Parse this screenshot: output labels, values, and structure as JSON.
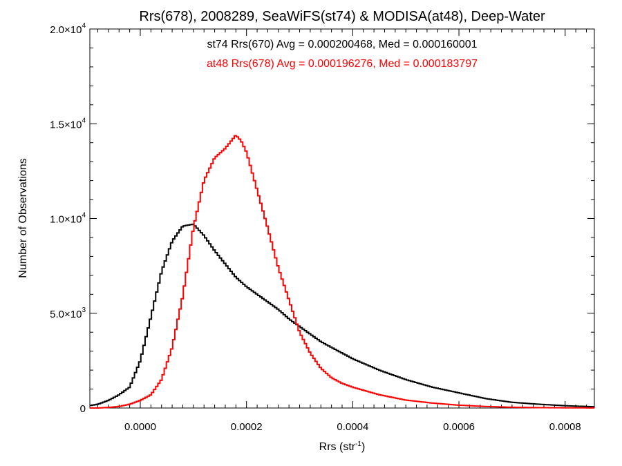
{
  "chart_data": {
    "type": "line",
    "title": "Rrs(678), 2008289, SeaWiFS(st74) & MODISA(at48), Deep-Water",
    "xlabel": "Rrs (str",
    "xlabel_sup": "-1",
    "xlabel_suffix": ")",
    "ylabel": "Number of Observations",
    "xlim": [
      -9.5e-05,
      0.000855
    ],
    "ylim": [
      0,
      20000
    ],
    "x_ticks": [
      {
        "value": 0.0,
        "label": "0.0000"
      },
      {
        "value": 0.0002,
        "label": "0.0002"
      },
      {
        "value": 0.0004,
        "label": "0.0004"
      },
      {
        "value": 0.0006,
        "label": "0.0006"
      },
      {
        "value": 0.0008,
        "label": "0.0008"
      }
    ],
    "y_ticks": [
      {
        "value": 0,
        "mantissa": "0",
        "exp": ""
      },
      {
        "value": 5000,
        "mantissa": "5.0×10",
        "exp": "3"
      },
      {
        "value": 10000,
        "mantissa": "1.0×10",
        "exp": "4"
      },
      {
        "value": 15000,
        "mantissa": "1.5×10",
        "exp": "4"
      },
      {
        "value": 20000,
        "mantissa": "2.0×10",
        "exp": "4"
      }
    ],
    "grid": false,
    "legend_position": "top-center",
    "series": [
      {
        "name": "st74",
        "color": "#000000",
        "annotation": "st74 Rrs(670) Avg = 0.000200468, Med = 0.000160001",
        "x": [
          -0.0001,
          -8e-05,
          -6e-05,
          -4e-05,
          -2e-05,
          0.0,
          2e-05,
          4e-05,
          6e-05,
          8e-05,
          0.0001,
          0.00012,
          0.00014,
          0.00016,
          0.00018,
          0.0002,
          0.00022,
          0.00024,
          0.00026,
          0.00028,
          0.0003,
          0.00032,
          0.00034,
          0.00036,
          0.00038,
          0.0004,
          0.00045,
          0.0005,
          0.00055,
          0.0006,
          0.00065,
          0.0007,
          0.00075,
          0.0008,
          0.00086
        ],
        "y": [
          100,
          200,
          400,
          700,
          1100,
          2500,
          4800,
          7200,
          8800,
          9600,
          9700,
          9100,
          8300,
          7600,
          6900,
          6400,
          6000,
          5600,
          5200,
          4700,
          4300,
          3900,
          3500,
          3200,
          2900,
          2600,
          2000,
          1500,
          1100,
          800,
          500,
          300,
          200,
          120,
          60
        ]
      },
      {
        "name": "at48",
        "color": "#ff0000",
        "annotation": "at48 Rrs(678) Avg = 0.000196276, Med = 0.000183797",
        "x": [
          -0.0001,
          -8e-05,
          -6e-05,
          -4e-05,
          -2e-05,
          0.0,
          2e-05,
          4e-05,
          6e-05,
          8e-05,
          0.0001,
          0.00012,
          0.00014,
          0.00016,
          0.00018,
          0.00019,
          0.0002,
          0.00022,
          0.00024,
          0.00026,
          0.00028,
          0.0003,
          0.00032,
          0.00034,
          0.00036,
          0.00038,
          0.0004,
          0.00045,
          0.0005,
          0.00055,
          0.0006,
          0.00065,
          0.0007,
          0.00075,
          0.0008,
          0.00086
        ],
        "y": [
          0,
          0,
          30,
          80,
          200,
          400,
          700,
          1500,
          3200,
          5900,
          9500,
          12000,
          13200,
          13700,
          14400,
          14100,
          13500,
          11500,
          9500,
          7400,
          5700,
          4000,
          2900,
          2100,
          1600,
          1300,
          1100,
          700,
          420,
          260,
          150,
          80,
          40,
          20,
          10,
          5
        ]
      }
    ]
  }
}
